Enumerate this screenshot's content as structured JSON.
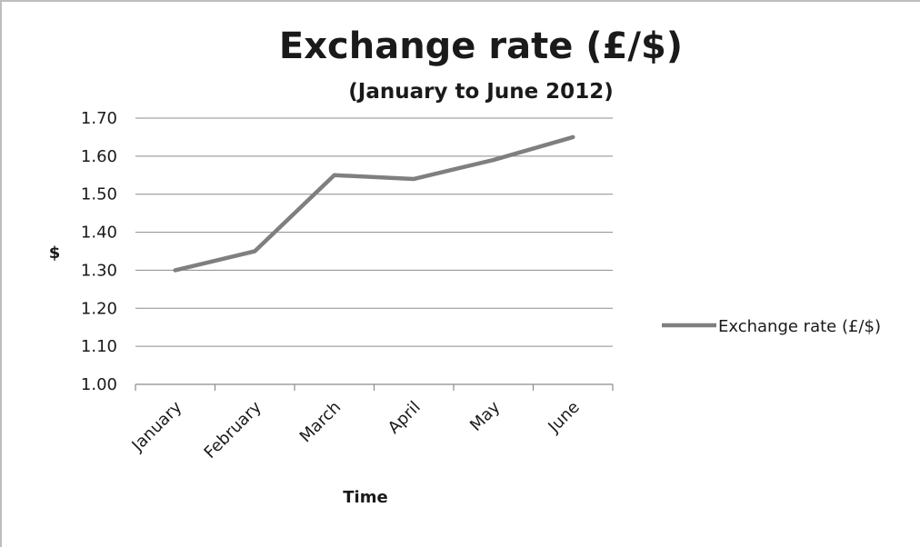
{
  "chart_data": {
    "type": "line",
    "title": "Exchange rate (£/$)",
    "subtitle": "(January to June 2012)",
    "xlabel": "Time",
    "ylabel": "$",
    "categories": [
      "January",
      "February",
      "March",
      "April",
      "May",
      "June"
    ],
    "series": [
      {
        "name": "Exchange rate (£/$)",
        "values": [
          1.3,
          1.35,
          1.55,
          1.54,
          1.59,
          1.65
        ]
      }
    ],
    "ylim": [
      1.0,
      1.7
    ],
    "yticks": [
      "1.00",
      "1.10",
      "1.20",
      "1.30",
      "1.40",
      "1.50",
      "1.60",
      "1.70"
    ],
    "grid": true,
    "legend": "right",
    "line_color": "#7f7f7f"
  }
}
